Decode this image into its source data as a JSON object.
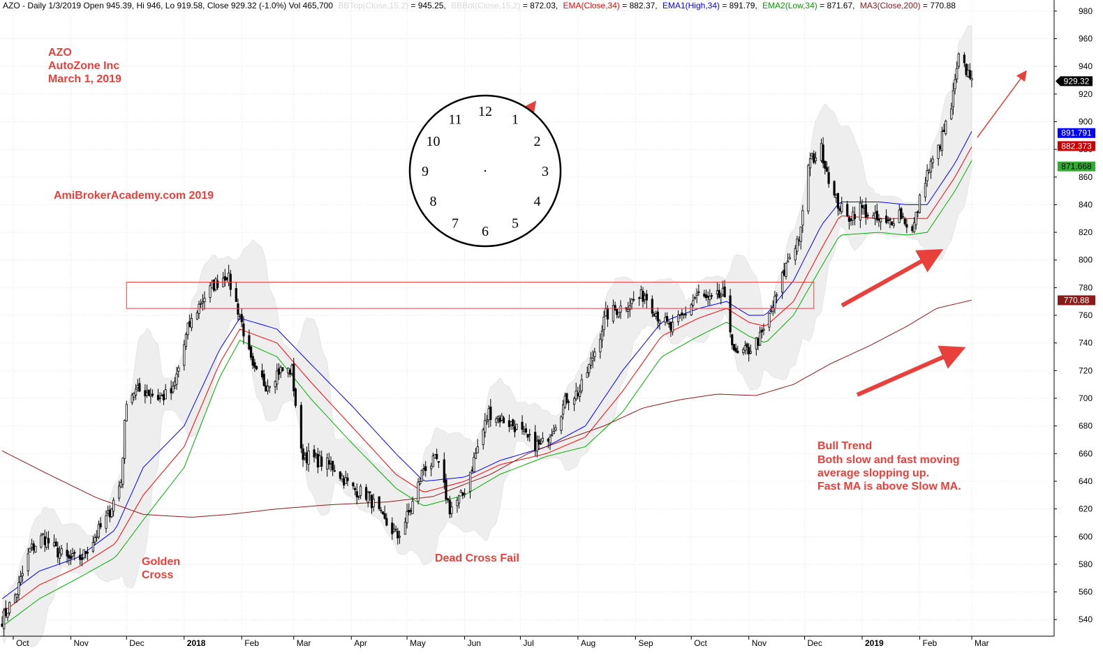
{
  "header": {
    "prefix": "AZO - Daily 1/3/2019 Open 945.39, Hi 946, Lo 919.58, Close 929.32 (-1.0%) Vol 465,700",
    "bbtop_label": "BBTop(Close,15,2)",
    "bbtop_value": " = 945.25,",
    "bbbot_label": "BBBot(Close,15,2)",
    "bbbot_value": " = 872.03,",
    "ema_label": "EMA(Close,34)",
    "ema_value": " = 882.37,",
    "ema1_label": "EMA1(High,34)",
    "ema1_value": " = 891.79,",
    "ema2_label": "EMA2(Low,34)",
    "ema2_value": " = 871.67,",
    "ma3_label": "MA3(Close,200)",
    "ma3_value": " = 770.88"
  },
  "annotations": {
    "ticker": "AZO",
    "company": "AutoZone Inc",
    "date": "March 1, 2019",
    "watermark": "AmiBrokerAcademy.com  2019",
    "golden_cross_1": "Golden",
    "golden_cross_2": "Cross",
    "dead_cross": "Dead Cross Fail",
    "bull_1": "Bull Trend",
    "bull_2": "Both slow and fast moving",
    "bull_3": "average slopping up.",
    "bull_4": "Fast MA is above Slow MA."
  },
  "clock": {
    "numbers": [
      "12",
      "1",
      "2",
      "3",
      "4",
      "5",
      "6",
      "7",
      "8",
      "9",
      "10",
      "11"
    ]
  },
  "colors": {
    "ema1": "#0000ff",
    "ema": "#ff0000",
    "ema2": "#00b000",
    "ma200": "#8b1a1a",
    "band": "#eeeeee",
    "annotation": "#e8413c",
    "candle": "#000000"
  },
  "price_labels": {
    "close": "929.32",
    "ema1": "891.791",
    "ema": "882.373",
    "ema2": "871.668",
    "ma200": "770.88"
  },
  "chart_data": {
    "type": "candlestick",
    "x_start": "2017-09-25",
    "x_end": "2019-03-01",
    "ylim": [
      528,
      988
    ],
    "y_ticks": [
      540,
      560,
      580,
      600,
      620,
      640,
      660,
      680,
      700,
      720,
      740,
      760,
      780,
      800,
      820,
      840,
      860,
      880,
      900,
      920,
      940,
      960,
      980
    ],
    "x_ticks": [
      {
        "date": "2017-10-01",
        "label": "Oct",
        "bold": false
      },
      {
        "date": "2017-11-01",
        "label": "Nov",
        "bold": false
      },
      {
        "date": "2017-12-01",
        "label": "Dec",
        "bold": false
      },
      {
        "date": "2018-01-01",
        "label": "2018",
        "bold": true
      },
      {
        "date": "2018-02-01",
        "label": "Feb",
        "bold": false
      },
      {
        "date": "2018-03-01",
        "label": "Mar",
        "bold": false
      },
      {
        "date": "2018-04-01",
        "label": "Apr",
        "bold": false
      },
      {
        "date": "2018-05-01",
        "label": "May",
        "bold": false
      },
      {
        "date": "2018-06-01",
        "label": "Jun",
        "bold": false
      },
      {
        "date": "2018-07-01",
        "label": "Jul",
        "bold": false
      },
      {
        "date": "2018-08-01",
        "label": "Aug",
        "bold": false
      },
      {
        "date": "2018-09-01",
        "label": "Sep",
        "bold": false
      },
      {
        "date": "2018-10-01",
        "label": "Oct",
        "bold": false
      },
      {
        "date": "2018-11-01",
        "label": "Nov",
        "bold": false
      },
      {
        "date": "2018-12-01",
        "label": "Dec",
        "bold": false
      },
      {
        "date": "2019-01-01",
        "label": "2019",
        "bold": true
      },
      {
        "date": "2019-02-01",
        "label": "Feb",
        "bold": false
      },
      {
        "date": "2019-03-01",
        "label": "Mar",
        "bold": false
      }
    ],
    "close_path": [
      [
        "2017-09-25",
        540
      ],
      [
        "2017-10-03",
        560
      ],
      [
        "2017-10-10",
        590
      ],
      [
        "2017-10-17",
        600
      ],
      [
        "2017-10-24",
        590
      ],
      [
        "2017-10-31",
        583
      ],
      [
        "2017-11-07",
        585
      ],
      [
        "2017-11-14",
        600
      ],
      [
        "2017-11-21",
        615
      ],
      [
        "2017-11-28",
        640
      ],
      [
        "2017-12-01",
        700
      ],
      [
        "2017-12-05",
        705
      ],
      [
        "2017-12-12",
        705
      ],
      [
        "2017-12-19",
        700
      ],
      [
        "2017-12-26",
        705
      ],
      [
        "2018-01-03",
        750
      ],
      [
        "2018-01-10",
        770
      ],
      [
        "2018-01-17",
        782
      ],
      [
        "2018-01-24",
        790
      ],
      [
        "2018-01-31",
        760
      ],
      [
        "2018-02-07",
        720
      ],
      [
        "2018-02-14",
        710
      ],
      [
        "2018-02-21",
        720
      ],
      [
        "2018-02-28",
        720
      ],
      [
        "2018-03-05",
        660
      ],
      [
        "2018-03-14",
        655
      ],
      [
        "2018-03-23",
        650
      ],
      [
        "2018-04-01",
        635
      ],
      [
        "2018-04-10",
        630
      ],
      [
        "2018-04-18",
        612
      ],
      [
        "2018-04-26",
        600
      ],
      [
        "2018-05-03",
        620
      ],
      [
        "2018-05-10",
        650
      ],
      [
        "2018-05-17",
        655
      ],
      [
        "2018-05-24",
        620
      ],
      [
        "2018-05-31",
        630
      ],
      [
        "2018-06-07",
        660
      ],
      [
        "2018-06-14",
        690
      ],
      [
        "2018-06-21",
        685
      ],
      [
        "2018-06-28",
        680
      ],
      [
        "2018-07-05",
        670
      ],
      [
        "2018-07-12",
        665
      ],
      [
        "2018-07-19",
        680
      ],
      [
        "2018-07-26",
        700
      ],
      [
        "2018-08-02",
        705
      ],
      [
        "2018-08-09",
        730
      ],
      [
        "2018-08-16",
        760
      ],
      [
        "2018-08-23",
        765
      ],
      [
        "2018-08-30",
        770
      ],
      [
        "2018-09-06",
        775
      ],
      [
        "2018-09-13",
        760
      ],
      [
        "2018-09-20",
        750
      ],
      [
        "2018-09-27",
        760
      ],
      [
        "2018-10-04",
        775
      ],
      [
        "2018-10-11",
        770
      ],
      [
        "2018-10-18",
        775
      ],
      [
        "2018-10-25",
        730
      ],
      [
        "2018-11-01",
        735
      ],
      [
        "2018-11-08",
        745
      ],
      [
        "2018-11-15",
        770
      ],
      [
        "2018-11-22",
        800
      ],
      [
        "2018-11-29",
        820
      ],
      [
        "2018-12-03",
        870
      ],
      [
        "2018-12-10",
        880
      ],
      [
        "2018-12-17",
        845
      ],
      [
        "2018-12-24",
        830
      ],
      [
        "2018-12-31",
        838
      ],
      [
        "2019-01-07",
        830
      ],
      [
        "2019-01-14",
        825
      ],
      [
        "2019-01-21",
        835
      ],
      [
        "2019-01-28",
        820
      ],
      [
        "2019-02-04",
        860
      ],
      [
        "2019-02-11",
        880
      ],
      [
        "2019-02-18",
        910
      ],
      [
        "2019-02-22",
        945
      ],
      [
        "2019-02-27",
        935
      ]
    ],
    "series": [
      {
        "name": "EMA1(High,34)",
        "values": [
          [
            "2017-09-25",
            555
          ],
          [
            "2017-10-15",
            575
          ],
          [
            "2017-11-05",
            585
          ],
          [
            "2017-11-25",
            605
          ],
          [
            "2017-12-10",
            650
          ],
          [
            "2018-01-01",
            680
          ],
          [
            "2018-01-20",
            735
          ],
          [
            "2018-01-31",
            758
          ],
          [
            "2018-02-20",
            750
          ],
          [
            "2018-03-10",
            725
          ],
          [
            "2018-04-01",
            695
          ],
          [
            "2018-04-25",
            660
          ],
          [
            "2018-05-10",
            640
          ],
          [
            "2018-06-01",
            643
          ],
          [
            "2018-06-20",
            655
          ],
          [
            "2018-07-15",
            665
          ],
          [
            "2018-08-05",
            680
          ],
          [
            "2018-08-25",
            720
          ],
          [
            "2018-09-15",
            755
          ],
          [
            "2018-10-05",
            765
          ],
          [
            "2018-10-20",
            770
          ],
          [
            "2018-11-01",
            760
          ],
          [
            "2018-11-10",
            760
          ],
          [
            "2018-11-25",
            785
          ],
          [
            "2018-12-10",
            825
          ],
          [
            "2018-12-20",
            842
          ],
          [
            "2019-01-10",
            842
          ],
          [
            "2019-01-25",
            840
          ],
          [
            "2019-02-05",
            840
          ],
          [
            "2019-02-20",
            870
          ],
          [
            "2019-03-01",
            893
          ]
        ]
      },
      {
        "name": "EMA(Close,34)",
        "values": [
          [
            "2017-09-25",
            545
          ],
          [
            "2017-10-15",
            565
          ],
          [
            "2017-11-05",
            578
          ],
          [
            "2017-11-25",
            595
          ],
          [
            "2017-12-10",
            630
          ],
          [
            "2018-01-01",
            665
          ],
          [
            "2018-01-20",
            725
          ],
          [
            "2018-01-31",
            750
          ],
          [
            "2018-02-20",
            740
          ],
          [
            "2018-03-10",
            712
          ],
          [
            "2018-04-01",
            680
          ],
          [
            "2018-04-25",
            645
          ],
          [
            "2018-05-10",
            632
          ],
          [
            "2018-06-01",
            640
          ],
          [
            "2018-06-20",
            652
          ],
          [
            "2018-07-15",
            660
          ],
          [
            "2018-08-05",
            672
          ],
          [
            "2018-08-25",
            705
          ],
          [
            "2018-09-15",
            745
          ],
          [
            "2018-10-05",
            758
          ],
          [
            "2018-10-20",
            765
          ],
          [
            "2018-11-01",
            755
          ],
          [
            "2018-11-10",
            752
          ],
          [
            "2018-11-25",
            770
          ],
          [
            "2018-12-10",
            808
          ],
          [
            "2018-12-20",
            832
          ],
          [
            "2019-01-10",
            830
          ],
          [
            "2019-01-25",
            830
          ],
          [
            "2019-02-05",
            830
          ],
          [
            "2019-02-20",
            860
          ],
          [
            "2019-03-01",
            882
          ]
        ]
      },
      {
        "name": "EMA2(Low,34)",
        "values": [
          [
            "2017-09-25",
            535
          ],
          [
            "2017-10-15",
            555
          ],
          [
            "2017-11-05",
            570
          ],
          [
            "2017-11-25",
            585
          ],
          [
            "2017-12-10",
            612
          ],
          [
            "2018-01-01",
            650
          ],
          [
            "2018-01-20",
            715
          ],
          [
            "2018-01-31",
            742
          ],
          [
            "2018-02-20",
            730
          ],
          [
            "2018-03-10",
            700
          ],
          [
            "2018-04-01",
            668
          ],
          [
            "2018-04-25",
            635
          ],
          [
            "2018-05-10",
            622
          ],
          [
            "2018-06-01",
            630
          ],
          [
            "2018-06-20",
            645
          ],
          [
            "2018-07-15",
            658
          ],
          [
            "2018-08-05",
            665
          ],
          [
            "2018-08-25",
            690
          ],
          [
            "2018-09-15",
            730
          ],
          [
            "2018-10-05",
            745
          ],
          [
            "2018-10-20",
            755
          ],
          [
            "2018-11-01",
            745
          ],
          [
            "2018-11-10",
            740
          ],
          [
            "2018-11-25",
            760
          ],
          [
            "2018-12-10",
            795
          ],
          [
            "2018-12-20",
            818
          ],
          [
            "2019-01-10",
            820
          ],
          [
            "2019-01-25",
            818
          ],
          [
            "2019-02-05",
            820
          ],
          [
            "2019-02-20",
            850
          ],
          [
            "2019-03-01",
            872
          ]
        ]
      },
      {
        "name": "MA3(Close,200)",
        "values": [
          [
            "2017-09-25",
            662
          ],
          [
            "2017-10-20",
            645
          ],
          [
            "2017-11-15",
            628
          ],
          [
            "2017-12-10",
            616
          ],
          [
            "2018-01-05",
            614
          ],
          [
            "2018-01-25",
            616
          ],
          [
            "2018-02-20",
            620
          ],
          [
            "2018-03-20",
            623
          ],
          [
            "2018-04-20",
            625
          ],
          [
            "2018-05-15",
            629
          ],
          [
            "2018-06-15",
            645
          ],
          [
            "2018-07-05",
            660
          ],
          [
            "2018-07-25",
            670
          ],
          [
            "2018-08-15",
            680
          ],
          [
            "2018-09-05",
            693
          ],
          [
            "2018-09-25",
            699
          ],
          [
            "2018-10-15",
            703
          ],
          [
            "2018-11-05",
            702
          ],
          [
            "2018-11-25",
            710
          ],
          [
            "2018-12-15",
            725
          ],
          [
            "2019-01-05",
            738
          ],
          [
            "2019-01-25",
            752
          ],
          [
            "2019-02-10",
            765
          ],
          [
            "2019-03-01",
            771
          ]
        ]
      }
    ],
    "bands": {
      "top_extra": [
        18,
        30
      ],
      "bottom_extra": [
        18,
        30
      ]
    },
    "resistance_box": {
      "x0": "2017-12-01",
      "x1": "2018-12-06",
      "y0": 765,
      "y1": 784
    }
  }
}
